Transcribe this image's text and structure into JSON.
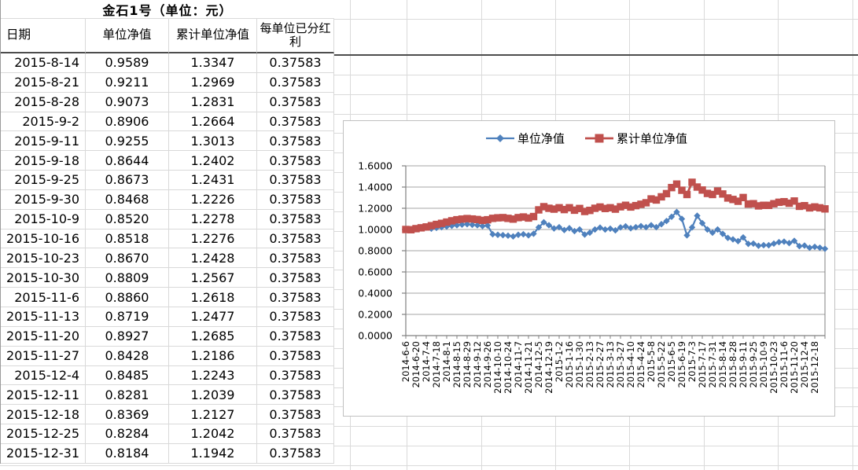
{
  "sheet": {
    "title": "金石1号（单位：元）",
    "columns": [
      "日期",
      "单位净值",
      "累计单位净值",
      "每单位已分红利"
    ],
    "rows": [
      [
        "2015-8-14",
        "0.9589",
        "1.3347",
        "0.37583"
      ],
      [
        "2015-8-21",
        "0.9211",
        "1.2969",
        "0.37583"
      ],
      [
        "2015-8-28",
        "0.9073",
        "1.2831",
        "0.37583"
      ],
      [
        "2015-9-2",
        "0.8906",
        "1.2664",
        "0.37583"
      ],
      [
        "2015-9-11",
        "0.9255",
        "1.3013",
        "0.37583"
      ],
      [
        "2015-9-18",
        "0.8644",
        "1.2402",
        "0.37583"
      ],
      [
        "2015-9-25",
        "0.8673",
        "1.2431",
        "0.37583"
      ],
      [
        "2015-9-30",
        "0.8468",
        "1.2226",
        "0.37583"
      ],
      [
        "2015-10-9",
        "0.8520",
        "1.2278",
        "0.37583"
      ],
      [
        "2015-10-16",
        "0.8518",
        "1.2276",
        "0.37583"
      ],
      [
        "2015-10-23",
        "0.8670",
        "1.2428",
        "0.37583"
      ],
      [
        "2015-10-30",
        "0.8809",
        "1.2567",
        "0.37583"
      ],
      [
        "2015-11-6",
        "0.8860",
        "1.2618",
        "0.37583"
      ],
      [
        "2015-11-13",
        "0.8719",
        "1.2477",
        "0.37583"
      ],
      [
        "2015-11-20",
        "0.8927",
        "1.2685",
        "0.37583"
      ],
      [
        "2015-11-27",
        "0.8428",
        "1.2186",
        "0.37583"
      ],
      [
        "2015-12-4",
        "0.8485",
        "1.2243",
        "0.37583"
      ],
      [
        "2015-12-11",
        "0.8281",
        "1.2039",
        "0.37583"
      ],
      [
        "2015-12-18",
        "0.8369",
        "1.2127",
        "0.37583"
      ],
      [
        "2015-12-25",
        "0.8284",
        "1.2042",
        "0.37583"
      ],
      [
        "2015-12-31",
        "0.8184",
        "1.1942",
        "0.37583"
      ]
    ]
  },
  "chart_data": {
    "type": "line",
    "title": "",
    "legend_position": "top-center",
    "grid": true,
    "ylim": [
      0.0,
      1.6
    ],
    "y_tick_labels": [
      "0.0000",
      "0.2000",
      "0.4000",
      "0.6000",
      "0.8000",
      "1.0000",
      "1.2000",
      "1.4000",
      "1.6000"
    ],
    "x_tick_labels": [
      "2014-6-6",
      "2014-6-20",
      "2014-7-4",
      "2014-7-18",
      "2014-8-1",
      "2014-8-15",
      "2014-8-29",
      "2014-9-12",
      "2014-9-26",
      "2014-10-10",
      "2014-10-24",
      "2014-11-7",
      "2014-11-21",
      "2014-12-5",
      "2014-12-19",
      "2015-1-2",
      "2015-1-16",
      "2015-1-30",
      "2015-2-13",
      "2015-2-27",
      "2015-3-13",
      "2015-3-27",
      "2015-4-10",
      "2015-4-24",
      "2015-5-8",
      "2015-5-22",
      "2015-6-5",
      "2015-6-19",
      "2015-7-3",
      "2015-7-17",
      "2015-7-31",
      "2015-8-14",
      "2015-8-28",
      "2015-9-11",
      "2015-9-25",
      "2015-10-9",
      "2015-10-23",
      "2015-11-6",
      "2015-11-20",
      "2015-12-4",
      "2015-12-18"
    ],
    "x_label_every_n_points": 2,
    "series": [
      {
        "name": "单位净值",
        "color": "#4f81bd",
        "marker": "diamond",
        "values": [
          1.0,
          0.996,
          1.004,
          1.012,
          1.018,
          1.008,
          1.015,
          1.022,
          1.028,
          1.035,
          1.04,
          1.046,
          1.05,
          1.044,
          1.04,
          1.032,
          1.038,
          0.955,
          0.95,
          0.947,
          0.942,
          0.935,
          0.95,
          0.955,
          0.945,
          0.96,
          1.02,
          1.068,
          1.04,
          1.01,
          1.022,
          0.995,
          1.012,
          0.985,
          1.0,
          0.952,
          0.97,
          1.0,
          1.018,
          1.0,
          1.008,
          0.992,
          1.02,
          1.03,
          1.012,
          1.022,
          1.032,
          1.022,
          1.04,
          1.022,
          1.05,
          1.08,
          1.12,
          1.165,
          1.1,
          0.945,
          1.02,
          1.13,
          1.06,
          1.0,
          0.97,
          1.0,
          0.9589,
          0.9211,
          0.9073,
          0.8906,
          0.9255,
          0.8644,
          0.8673,
          0.8468,
          0.852,
          0.8518,
          0.867,
          0.8809,
          0.886,
          0.8719,
          0.8927,
          0.8428,
          0.8485,
          0.8281,
          0.8369,
          0.8284,
          0.8184
        ]
      },
      {
        "name": "累计单位净值",
        "color": "#c0504d",
        "marker": "square",
        "values": [
          1.0,
          0.998,
          1.008,
          1.016,
          1.024,
          1.036,
          1.048,
          1.058,
          1.07,
          1.082,
          1.092,
          1.098,
          1.103,
          1.099,
          1.094,
          1.086,
          1.092,
          1.105,
          1.11,
          1.112,
          1.105,
          1.098,
          1.112,
          1.118,
          1.108,
          1.122,
          1.185,
          1.215,
          1.2,
          1.192,
          1.205,
          1.188,
          1.205,
          1.182,
          1.198,
          1.17,
          1.18,
          1.2,
          1.212,
          1.198,
          1.205,
          1.192,
          1.214,
          1.228,
          1.212,
          1.225,
          1.238,
          1.252,
          1.288,
          1.278,
          1.308,
          1.338,
          1.395,
          1.428,
          1.37,
          1.33,
          1.445,
          1.4,
          1.372,
          1.34,
          1.33,
          1.362,
          1.3347,
          1.2969,
          1.2831,
          1.2664,
          1.3013,
          1.2402,
          1.2431,
          1.2226,
          1.2278,
          1.2276,
          1.2428,
          1.2567,
          1.2618,
          1.2477,
          1.2685,
          1.2186,
          1.2243,
          1.2039,
          1.2127,
          1.2042,
          1.1942
        ]
      }
    ]
  }
}
